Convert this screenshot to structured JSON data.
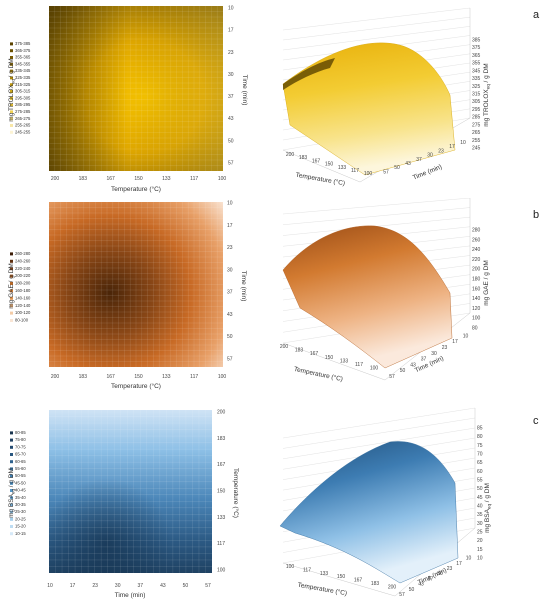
{
  "chart_data": [
    {
      "letter": "a",
      "type": "heatmap",
      "ylabel_main": "mg TROLOX",
      "ylabel_sub": "eq",
      "ylabel_unit": " / g DM",
      "heatmap_x_title": "Temperature (°C)",
      "heatmap_x_ticks": [
        "200",
        "183",
        "167",
        "150",
        "133",
        "117",
        "100"
      ],
      "heatmap_y_title": "Time (min)",
      "heatmap_y_ticks": [
        "10",
        "17",
        "23",
        "30",
        "37",
        "43",
        "50",
        "57"
      ],
      "legend": [
        "375-385",
        "365-375",
        "355-365",
        "345-355",
        "335-345",
        "325-335",
        "315-325",
        "305-315",
        "295-305",
        "285-295",
        "275-285",
        "265-275",
        "255-265",
        "245-255"
      ],
      "colors": [
        "#5c4400",
        "#6a5000",
        "#7a5c02",
        "#8a6904",
        "#9a7708",
        "#ab860c",
        "#bc9612",
        "#cda81a",
        "#dcb624",
        "#e8c333",
        "#efd054",
        "#f4dc7e",
        "#f8e7a8",
        "#fcf3d4"
      ],
      "surface_z_ticks": [
        "385",
        "375",
        "365",
        "355",
        "345",
        "335",
        "325",
        "315",
        "305",
        "295",
        "285",
        "275",
        "265",
        "255",
        "245"
      ],
      "surface_temp_ticks": [
        "200",
        "183",
        "167",
        "150",
        "133",
        "117",
        "100"
      ],
      "surface_time_ticks": [
        "10",
        "17",
        "23",
        "30",
        "37",
        "43",
        "50",
        "57"
      ],
      "surface_temp_title": "Temperature (°C)",
      "surface_time_title": "Time (min)"
    },
    {
      "letter": "b",
      "type": "heatmap",
      "ylabel_main": "mg GAE",
      "ylabel_sub": "",
      "ylabel_unit": " / g DM",
      "heatmap_x_title": "Temperature (°C)",
      "heatmap_x_ticks": [
        "200",
        "183",
        "167",
        "150",
        "133",
        "117",
        "100"
      ],
      "heatmap_y_title": "Time (min)",
      "heatmap_y_ticks": [
        "10",
        "17",
        "23",
        "30",
        "37",
        "43",
        "50",
        "57"
      ],
      "legend": [
        "260-280",
        "240-260",
        "220-240",
        "200-220",
        "180-200",
        "160-180",
        "140-160",
        "120-140",
        "100-120",
        "80-100"
      ],
      "colors": [
        "#3e1e08",
        "#5e2f0e",
        "#7c4015",
        "#9a531c",
        "#b86827",
        "#d07d37",
        "#e0954f",
        "#ebb078",
        "#f3cba6",
        "#f9e5d4"
      ],
      "surface_z_ticks": [
        "280",
        "260",
        "240",
        "220",
        "200",
        "180",
        "160",
        "140",
        "120",
        "100",
        "80"
      ],
      "surface_temp_ticks": [
        "200",
        "183",
        "167",
        "150",
        "133",
        "117",
        "100"
      ],
      "surface_time_ticks": [
        "57",
        "50",
        "43",
        "37",
        "30",
        "23",
        "17",
        "10"
      ],
      "surface_temp_title": "Temperature (°C)",
      "surface_time_title": "Time (min)"
    },
    {
      "letter": "c",
      "type": "heatmap",
      "ylabel_main": "mg BSA",
      "ylabel_sub": "eq",
      "ylabel_unit": " / g DM",
      "heatmap_x_title": "Time (min)",
      "heatmap_x_ticks": [
        "10",
        "17",
        "23",
        "30",
        "37",
        "43",
        "50",
        "57"
      ],
      "heatmap_y_title": "Temperature (°C)",
      "heatmap_y_ticks": [
        "200",
        "183",
        "167",
        "150",
        "133",
        "117",
        "100"
      ],
      "legend": [
        "80-85",
        "75-80",
        "70-75",
        "65-70",
        "60-65",
        "55-60",
        "50-55",
        "45-50",
        "40-45",
        "35-40",
        "30-35",
        "25-30",
        "20-25",
        "15-20",
        "10-15"
      ],
      "colors": [
        "#1a3550",
        "#1f3f60",
        "#244a70",
        "#29567f",
        "#2f628e",
        "#356f9d",
        "#3d7cad",
        "#4789bb",
        "#5597c8",
        "#66a5d3",
        "#79b3dc",
        "#8ec1e4",
        "#a5cfeb",
        "#bddcf2",
        "#d6e9f8"
      ],
      "surface_z_ticks": [
        "85",
        "80",
        "75",
        "70",
        "65",
        "60",
        "55",
        "50",
        "45",
        "40",
        "35",
        "30",
        "25",
        "20",
        "15",
        "10"
      ],
      "surface_temp_ticks": [
        "100",
        "117",
        "133",
        "150",
        "167",
        "183",
        "200"
      ],
      "surface_time_ticks": [
        "57",
        "50",
        "43",
        "37",
        "30",
        "23",
        "17",
        "10"
      ],
      "surface_temp_title": "Temperature (°C)",
      "surface_time_title": "Time (min)"
    }
  ]
}
